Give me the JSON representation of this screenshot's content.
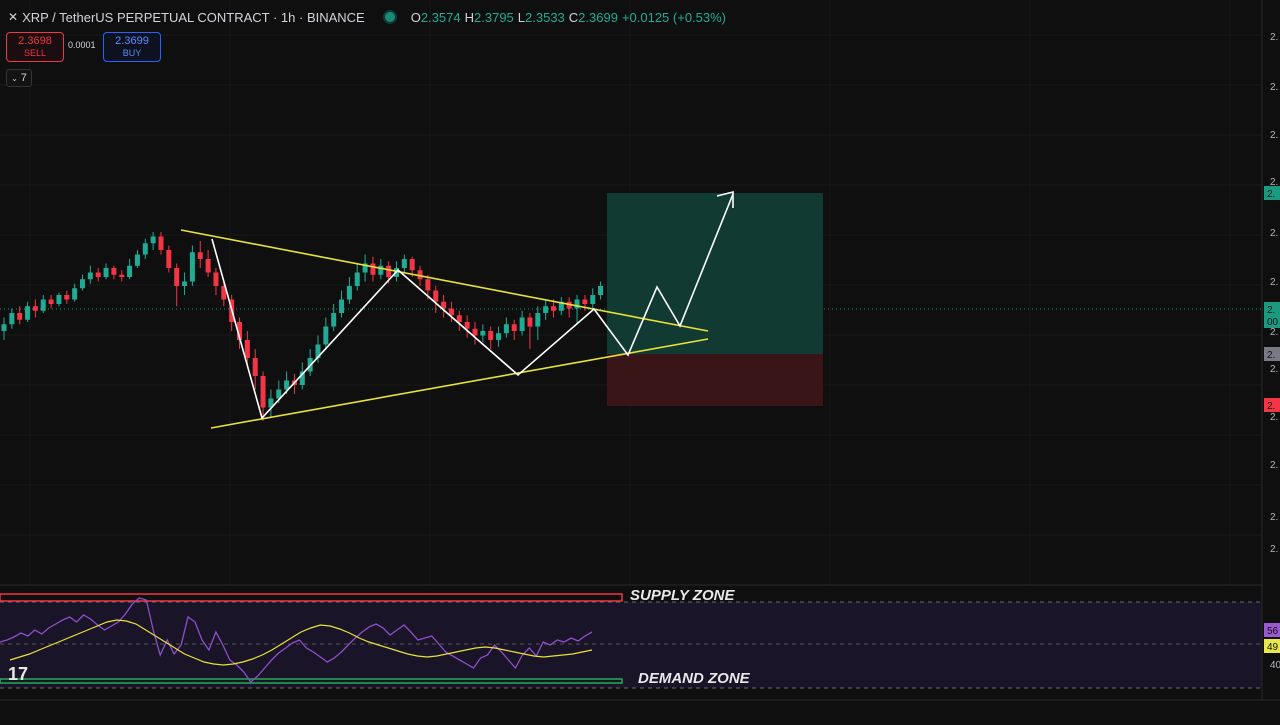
{
  "header": {
    "logo": "✕",
    "title": "XRP / TetherUS PERPETUAL CONTRACT · 1h · BINANCE",
    "open_label": "O",
    "open": "2.3574",
    "high_label": "H",
    "high": "2.3795",
    "low_label": "L",
    "low": "2.3533",
    "close_label": "C",
    "close": "2.3699",
    "change": "+0.0125 (+0.53%)"
  },
  "trade": {
    "sell_price": "2.3698",
    "sell_label": "SELL",
    "spread": "0.0001",
    "buy_price": "2.3699",
    "buy_label": "BUY",
    "indicator_count_icon": "chevron-down-icon",
    "indicator_count": "7"
  },
  "price_axis": {
    "labels": [
      "2.",
      "2.",
      "2.",
      "2.",
      "2.",
      "2.",
      "2.",
      "2.",
      "2.",
      "2.",
      "2.",
      "2."
    ],
    "tags": [
      {
        "text": "2.",
        "color": "#1a9b80"
      },
      {
        "text": "2.",
        "color": "#1a9b80"
      },
      {
        "text": "00",
        "color": "#1a9b80"
      },
      {
        "text": "2.",
        "color": "#787b86"
      },
      {
        "text": "2.",
        "color": "#f23645"
      }
    ]
  },
  "rsi_axis": {
    "tags": [
      {
        "text": "56",
        "color": "#9b59d0"
      },
      {
        "text": "49",
        "color": "#e8e84a"
      }
    ],
    "label": "40"
  },
  "annotations": {
    "supply_zone": "SUPPLY ZONE",
    "demand_zone": "DEMAND ZONE",
    "tv_logo": "17"
  },
  "colors": {
    "up": "#22ab94",
    "down": "#f23645",
    "triangle": "#e8e23a",
    "path": "#ffffff",
    "rsi": "#8f4fc7",
    "rsi_ma": "#e8e23a",
    "target_zone": "#113a33",
    "stop_zone": "#3a1518"
  },
  "chart_data": {
    "type": "candlestick",
    "symbol": "XRP / TetherUS PERPETUAL CONTRACT",
    "interval": "1h",
    "exchange": "BINANCE",
    "last": {
      "open": 2.3574,
      "high": 2.3795,
      "low": 2.3533,
      "close": 2.3699
    },
    "note_pattern": "symmetrical triangle with projected breakout path",
    "candles_relative": [
      [
        0.44,
        0.47,
        0.4,
        0.5
      ],
      [
        0.47,
        0.52,
        0.45,
        0.54
      ],
      [
        0.52,
        0.49,
        0.47,
        0.55
      ],
      [
        0.49,
        0.55,
        0.48,
        0.57
      ],
      [
        0.55,
        0.53,
        0.5,
        0.58
      ],
      [
        0.53,
        0.58,
        0.52,
        0.6
      ],
      [
        0.58,
        0.56,
        0.54,
        0.6
      ],
      [
        0.56,
        0.6,
        0.55,
        0.61
      ],
      [
        0.6,
        0.58,
        0.56,
        0.62
      ],
      [
        0.58,
        0.63,
        0.57,
        0.65
      ],
      [
        0.63,
        0.67,
        0.62,
        0.69
      ],
      [
        0.67,
        0.7,
        0.65,
        0.73
      ],
      [
        0.7,
        0.68,
        0.66,
        0.72
      ],
      [
        0.68,
        0.72,
        0.67,
        0.74
      ],
      [
        0.72,
        0.69,
        0.67,
        0.73
      ],
      [
        0.69,
        0.68,
        0.66,
        0.71
      ],
      [
        0.68,
        0.73,
        0.67,
        0.76
      ],
      [
        0.73,
        0.78,
        0.72,
        0.8
      ],
      [
        0.78,
        0.83,
        0.76,
        0.85
      ],
      [
        0.83,
        0.86,
        0.8,
        0.88
      ],
      [
        0.86,
        0.8,
        0.78,
        0.88
      ],
      [
        0.8,
        0.72,
        0.7,
        0.82
      ],
      [
        0.72,
        0.64,
        0.55,
        0.74
      ],
      [
        0.64,
        0.66,
        0.6,
        0.7
      ],
      [
        0.66,
        0.79,
        0.64,
        0.82
      ],
      [
        0.79,
        0.76,
        0.72,
        0.84
      ],
      [
        0.76,
        0.7,
        0.68,
        0.8
      ],
      [
        0.7,
        0.64,
        0.6,
        0.72
      ],
      [
        0.64,
        0.58,
        0.55,
        0.66
      ],
      [
        0.58,
        0.48,
        0.44,
        0.6
      ],
      [
        0.48,
        0.4,
        0.36,
        0.5
      ],
      [
        0.4,
        0.32,
        0.28,
        0.44
      ],
      [
        0.32,
        0.24,
        0.18,
        0.36
      ],
      [
        0.24,
        0.1,
        0.04,
        0.26
      ],
      [
        0.1,
        0.14,
        0.06,
        0.18
      ],
      [
        0.14,
        0.18,
        0.12,
        0.22
      ],
      [
        0.18,
        0.22,
        0.16,
        0.26
      ],
      [
        0.22,
        0.2,
        0.16,
        0.25
      ],
      [
        0.2,
        0.26,
        0.18,
        0.3
      ],
      [
        0.26,
        0.32,
        0.24,
        0.36
      ],
      [
        0.32,
        0.38,
        0.3,
        0.42
      ],
      [
        0.38,
        0.46,
        0.36,
        0.5
      ],
      [
        0.46,
        0.52,
        0.44,
        0.56
      ],
      [
        0.52,
        0.58,
        0.5,
        0.62
      ],
      [
        0.58,
        0.64,
        0.56,
        0.68
      ],
      [
        0.64,
        0.7,
        0.62,
        0.74
      ],
      [
        0.7,
        0.74,
        0.66,
        0.78
      ],
      [
        0.74,
        0.69,
        0.66,
        0.77
      ],
      [
        0.69,
        0.73,
        0.67,
        0.76
      ],
      [
        0.73,
        0.68,
        0.65,
        0.75
      ],
      [
        0.68,
        0.72,
        0.66,
        0.75
      ],
      [
        0.72,
        0.76,
        0.7,
        0.78
      ],
      [
        0.76,
        0.71,
        0.68,
        0.77
      ],
      [
        0.71,
        0.67,
        0.64,
        0.73
      ],
      [
        0.67,
        0.62,
        0.58,
        0.69
      ],
      [
        0.62,
        0.57,
        0.52,
        0.64
      ],
      [
        0.57,
        0.54,
        0.5,
        0.6
      ],
      [
        0.54,
        0.51,
        0.48,
        0.57
      ],
      [
        0.51,
        0.48,
        0.44,
        0.53
      ],
      [
        0.48,
        0.45,
        0.41,
        0.51
      ],
      [
        0.45,
        0.42,
        0.38,
        0.48
      ],
      [
        0.42,
        0.44,
        0.39,
        0.47
      ],
      [
        0.44,
        0.4,
        0.36,
        0.46
      ],
      [
        0.4,
        0.43,
        0.37,
        0.46
      ],
      [
        0.43,
        0.47,
        0.41,
        0.5
      ],
      [
        0.47,
        0.44,
        0.4,
        0.49
      ],
      [
        0.44,
        0.5,
        0.42,
        0.53
      ],
      [
        0.5,
        0.46,
        0.36,
        0.52
      ],
      [
        0.46,
        0.52,
        0.4,
        0.55
      ],
      [
        0.52,
        0.55,
        0.49,
        0.58
      ],
      [
        0.55,
        0.53,
        0.5,
        0.58
      ],
      [
        0.53,
        0.57,
        0.51,
        0.59
      ],
      [
        0.57,
        0.54,
        0.5,
        0.59
      ],
      [
        0.54,
        0.58,
        0.47,
        0.6
      ],
      [
        0.58,
        0.56,
        0.53,
        0.6
      ],
      [
        0.56,
        0.6,
        0.54,
        0.63
      ],
      [
        0.6,
        0.64,
        0.58,
        0.66
      ]
    ]
  }
}
